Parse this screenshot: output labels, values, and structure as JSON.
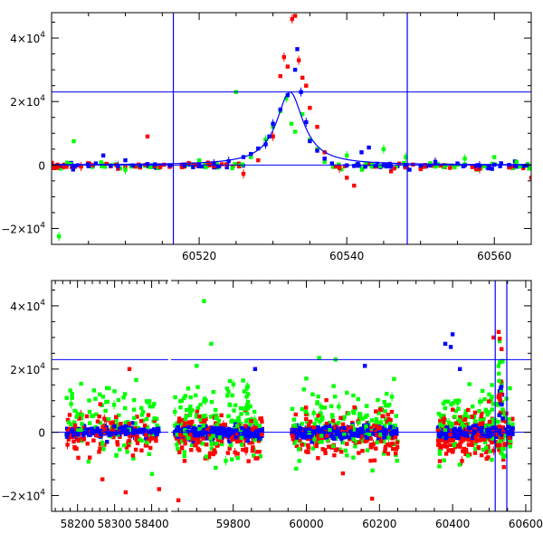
{
  "chart_data": [
    {
      "type": "scatter",
      "panel": "top",
      "xlim": [
        60500,
        60565
      ],
      "ylim": [
        -25000,
        48000
      ],
      "x_ticks": [
        {
          "value": 60520,
          "label": "60520"
        },
        {
          "value": 60540,
          "label": "60540"
        },
        {
          "value": 60560,
          "label": "60560"
        }
      ],
      "y_ticks": [
        {
          "value": -20000,
          "base": "−2×10",
          "exp": "4"
        },
        {
          "value": 0,
          "base": "0",
          "exp": ""
        },
        {
          "value": 20000,
          "base": "2×10",
          "exp": "4"
        },
        {
          "value": 40000,
          "base": "4×10",
          "exp": "4"
        }
      ],
      "hlines": [
        0,
        23000
      ],
      "vlines": [
        60516.5,
        60548.2
      ],
      "model_curve": {
        "peak_x": 60532.3,
        "peak_y": 23000,
        "width": 2.2,
        "color": "#0000ff"
      },
      "series_colors": [
        "#ff0000",
        "#00ff00",
        "#0000ff"
      ],
      "series": [
        {
          "color": "#ff0000",
          "points": [
            [
              60502,
              -600
            ],
            [
              60504,
              -500
            ],
            [
              60508,
              -400
            ],
            [
              60509,
              -1200
            ],
            [
              60510,
              -700
            ],
            [
              60512,
              -800
            ],
            [
              60513,
              9000
            ],
            [
              60514,
              -300
            ],
            [
              60516,
              -600
            ],
            [
              60518,
              -500
            ],
            [
              60522,
              -400
            ],
            [
              60526,
              -2800
            ],
            [
              60528,
              1500
            ],
            [
              60530,
              9000
            ],
            [
              60531,
              28000
            ],
            [
              60531.5,
              34000
            ],
            [
              60532,
              31000
            ],
            [
              60532.6,
              46000
            ],
            [
              60533,
              47000
            ],
            [
              60533.5,
              33000
            ],
            [
              60534,
              27500
            ],
            [
              60534.5,
              25000
            ],
            [
              60535,
              18000
            ],
            [
              60536,
              12000
            ],
            [
              60537,
              4000
            ],
            [
              60539,
              -1000
            ],
            [
              60540,
              -4000
            ],
            [
              60541,
              -6500
            ],
            [
              60544,
              -500
            ],
            [
              60546,
              -2000
            ],
            [
              60548,
              -800
            ],
            [
              60550,
              -700
            ],
            [
              60554,
              -900
            ],
            [
              60558,
              -1200
            ],
            [
              60562,
              -800
            ],
            [
              60565,
              -4000
            ]
          ]
        },
        {
          "color": "#00ff00",
          "points": [
            [
              60501,
              -22500
            ],
            [
              60503,
              7500
            ],
            [
              60510,
              -1500
            ],
            [
              60520,
              1500
            ],
            [
              60525,
              23000
            ],
            [
              60527,
              2500
            ],
            [
              60529,
              8000
            ],
            [
              60530,
              12000
            ],
            [
              60531,
              17000
            ],
            [
              60531.8,
              21000
            ],
            [
              60532.5,
              13000
            ],
            [
              60533,
              10500
            ],
            [
              60534,
              16000
            ],
            [
              60535,
              8000
            ],
            [
              60536,
              5000
            ],
            [
              60537,
              1000
            ],
            [
              60540,
              3000
            ],
            [
              60545,
              5000
            ],
            [
              60548,
              2500
            ],
            [
              60552,
              -500
            ],
            [
              60556,
              2000
            ],
            [
              60560,
              2500
            ],
            [
              60563,
              1000
            ]
          ]
        },
        {
          "color": "#0000ff",
          "points": [
            [
              60503,
              -300
            ],
            [
              60505,
              -400
            ],
            [
              60506,
              500
            ],
            [
              60507,
              3000
            ],
            [
              60508,
              -200
            ],
            [
              60509,
              -300
            ],
            [
              60510,
              1500
            ],
            [
              60511,
              -100
            ],
            [
              60512,
              -200
            ],
            [
              60513,
              300
            ],
            [
              60514,
              200
            ],
            [
              60516,
              -100
            ],
            [
              60518,
              -200
            ],
            [
              60520,
              0
            ],
            [
              60522,
              400
            ],
            [
              60524,
              1200
            ],
            [
              60526,
              2500
            ],
            [
              60527,
              3500
            ],
            [
              60528,
              5200
            ],
            [
              60529,
              6500
            ],
            [
              60529.5,
              9000
            ],
            [
              60530,
              13000
            ],
            [
              60531,
              17500
            ],
            [
              60532,
              22000
            ],
            [
              60533,
              30000
            ],
            [
              60533.3,
              36500
            ],
            [
              60533.8,
              23000
            ],
            [
              60534.5,
              13500
            ],
            [
              60535,
              7500
            ],
            [
              60536,
              4500
            ],
            [
              60537,
              2000
            ],
            [
              60538,
              500
            ],
            [
              60540,
              -100
            ],
            [
              60541,
              -300
            ],
            [
              60542,
              4000
            ],
            [
              60543,
              5500
            ],
            [
              60544,
              -200
            ],
            [
              60545,
              -100
            ],
            [
              60546,
              -300
            ],
            [
              60548,
              0
            ],
            [
              60550,
              -200
            ],
            [
              60552,
              1000
            ],
            [
              60555,
              500
            ],
            [
              60556,
              -100
            ],
            [
              60558,
              -200
            ],
            [
              60560,
              100
            ],
            [
              60562,
              0
            ],
            [
              60564,
              -300
            ]
          ]
        }
      ]
    },
    {
      "type": "scatter",
      "panel": "bottom",
      "xlim": [
        58130,
        60615
      ],
      "x_break": [
        58445,
        59630
      ],
      "ylim": [
        -25000,
        48000
      ],
      "x_ticks": [
        {
          "value": 58200,
          "label": "58200"
        },
        {
          "value": 58300,
          "label": "58300"
        },
        {
          "value": 58400,
          "label": "58400"
        },
        {
          "value": 59800,
          "label": "59800"
        },
        {
          "value": 60000,
          "label": "60000"
        },
        {
          "value": 60200,
          "label": "60200"
        },
        {
          "value": 60400,
          "label": "60400"
        },
        {
          "value": 60600,
          "label": "60600"
        }
      ],
      "y_ticks": [
        {
          "value": -20000,
          "base": "−2×10",
          "exp": "4"
        },
        {
          "value": 0,
          "base": "0",
          "exp": ""
        },
        {
          "value": 20000,
          "base": "2×10",
          "exp": "4"
        },
        {
          "value": 40000,
          "base": "4×10",
          "exp": "4"
        }
      ],
      "hlines": [
        0,
        23000
      ],
      "vlines": [
        60516.5,
        60548.2
      ],
      "seasons": [
        [
          58170,
          58420
        ],
        [
          59640,
          59880
        ],
        [
          59960,
          60250
        ],
        [
          60360,
          60565
        ]
      ],
      "highlights": [
        {
          "color": "#00ff00",
          "points": [
            [
              59720,
              41500
            ],
            [
              59740,
              28000
            ],
            [
              58260,
              12000
            ],
            [
              58300,
              13000
            ],
            [
              60080,
              23000
            ],
            [
              60000,
              17000
            ],
            [
              59700,
              21000
            ],
            [
              60500,
              12000
            ]
          ]
        },
        {
          "color": "#0000ff",
          "points": [
            [
              60400,
              31000
            ],
            [
              60380,
              28000
            ],
            [
              60395,
              27000
            ],
            [
              60420,
              20000
            ],
            [
              59860,
              20000
            ],
            [
              60160,
              21000
            ]
          ]
        },
        {
          "color": "#ff0000",
          "points": [
            [
              58340,
              20000
            ],
            [
              58330,
              -19000
            ],
            [
              58420,
              -18000
            ],
            [
              59650,
              -21500
            ],
            [
              60100,
              -13000
            ],
            [
              60180,
              -21000
            ],
            [
              60540,
              -11000
            ],
            [
              60512,
              30000
            ]
          ]
        }
      ],
      "series_colors": [
        "#ff0000",
        "#00ff00",
        "#0000ff"
      ]
    }
  ]
}
